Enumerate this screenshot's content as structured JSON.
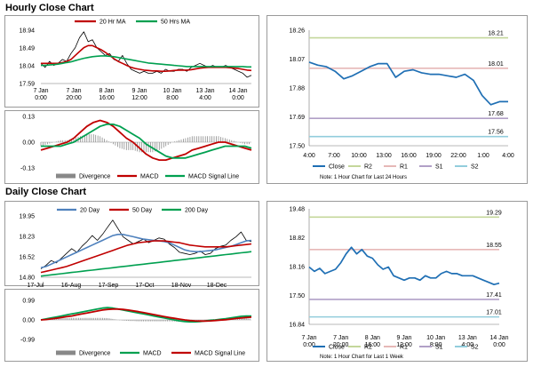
{
  "sections": {
    "hourly_title": "Hourly Close Chart",
    "daily_title": "Daily Close Chart"
  },
  "chart_data": [
    {
      "id": "hourly_price",
      "type": "line",
      "title": "Hourly Close Chart",
      "ylim": [
        17.59,
        18.94
      ],
      "yticks": [
        17.59,
        18.04,
        18.49,
        18.94
      ],
      "xticks": [
        "7 Jan\n0:00",
        "7 Jan\n20:00",
        "8 Jan\n16:00",
        "9 Jan\n12:00",
        "10 Jan\n8:00",
        "13 Jan\n4:00",
        "14 Jan\n0:00"
      ],
      "legend": [
        "20 Hr MA",
        "50 Hrs MA"
      ],
      "colors": {
        "close": "#000000",
        "ma20": "#c00000",
        "ma50": "#00a050"
      },
      "series": [
        {
          "name": "Close",
          "color": "#000000",
          "values": [
            18.1,
            18.0,
            18.15,
            18.05,
            18.1,
            18.2,
            18.15,
            18.35,
            18.5,
            18.75,
            18.9,
            18.65,
            18.7,
            18.5,
            18.4,
            18.3,
            18.35,
            18.2,
            18.15,
            18.3,
            18.1,
            17.95,
            17.9,
            17.85,
            17.9,
            17.85,
            17.85,
            17.9,
            17.85,
            17.95,
            17.9,
            17.9,
            17.95,
            17.95,
            17.9,
            18.0,
            18.05,
            18.1,
            18.05,
            18.0,
            18.05,
            18.0,
            18.0,
            18.05,
            18.0,
            17.95,
            17.9,
            17.85,
            17.75,
            17.8
          ]
        },
        {
          "name": "20 Hr MA",
          "color": "#c00000",
          "values": [
            18.1,
            18.1,
            18.1,
            18.1,
            18.1,
            18.12,
            18.15,
            18.2,
            18.3,
            18.4,
            18.5,
            18.55,
            18.55,
            18.5,
            18.45,
            18.38,
            18.3,
            18.22,
            18.15,
            18.1,
            18.05,
            18.0,
            17.97,
            17.95,
            17.93,
            17.92,
            17.91,
            17.91,
            17.9,
            17.9,
            17.91,
            17.92,
            17.93,
            17.93,
            17.93,
            17.94,
            17.96,
            17.98,
            17.99,
            18.0,
            18.0,
            18.0,
            18.0,
            18.0,
            17.99,
            17.98,
            17.97,
            17.95,
            17.93,
            17.92
          ]
        },
        {
          "name": "50 Hrs MA",
          "color": "#00a050",
          "values": [
            18.05,
            18.05,
            18.06,
            18.07,
            18.08,
            18.1,
            18.12,
            18.14,
            18.17,
            18.2,
            18.23,
            18.25,
            18.27,
            18.28,
            18.29,
            18.29,
            18.28,
            18.27,
            18.25,
            18.23,
            18.21,
            18.19,
            18.17,
            18.15,
            18.13,
            18.11,
            18.1,
            18.09,
            18.08,
            18.07,
            18.06,
            18.05,
            18.04,
            18.03,
            18.02,
            18.02,
            18.02,
            18.02,
            18.02,
            18.02,
            18.02,
            18.02,
            18.02,
            18.02,
            18.02,
            18.02,
            18.02,
            18.02,
            18.01,
            18.01
          ]
        }
      ]
    },
    {
      "id": "hourly_macd",
      "type": "line",
      "ylim": [
        -0.13,
        0.13
      ],
      "yticks": [
        0.13,
        0.0,
        -0.13
      ],
      "legend": [
        "Divergence",
        "MACD",
        "MACD Signal Line"
      ],
      "series": [
        {
          "name": "MACD",
          "color": "#c00000",
          "values": [
            -0.04,
            -0.03,
            -0.02,
            -0.01,
            0.0,
            0.02,
            0.05,
            0.08,
            0.1,
            0.11,
            0.1,
            0.08,
            0.05,
            0.02,
            0.0,
            -0.03,
            -0.06,
            -0.08,
            -0.09,
            -0.09,
            -0.08,
            -0.07,
            -0.06,
            -0.04,
            -0.03,
            -0.02,
            -0.01,
            0.0,
            0.0,
            -0.01,
            -0.02,
            -0.03,
            -0.04
          ]
        },
        {
          "name": "MACD Signal Line",
          "color": "#00a050",
          "values": [
            -0.02,
            -0.02,
            -0.02,
            -0.02,
            -0.01,
            0.0,
            0.02,
            0.04,
            0.06,
            0.08,
            0.09,
            0.09,
            0.08,
            0.06,
            0.04,
            0.02,
            -0.01,
            -0.03,
            -0.05,
            -0.07,
            -0.08,
            -0.08,
            -0.08,
            -0.07,
            -0.06,
            -0.05,
            -0.04,
            -0.03,
            -0.02,
            -0.02,
            -0.02,
            -0.02,
            -0.03
          ]
        }
      ]
    },
    {
      "id": "hourly_24h",
      "type": "line",
      "ylim": [
        17.5,
        18.26
      ],
      "yticks": [
        18.26,
        18.07,
        17.88,
        17.69,
        17.5
      ],
      "xticks": [
        "4:00",
        "7:00",
        "10:00",
        "13:00",
        "16:00",
        "19:00",
        "22:00",
        "1:00",
        "4:00"
      ],
      "legend": [
        "Close",
        "R2",
        "R1",
        "S1",
        "S2"
      ],
      "note": "Note: 1 Hour Chart for Last 24 Hours",
      "levels": {
        "R2": 18.21,
        "R1": 18.01,
        "S1": 17.68,
        "S2": 17.56
      },
      "level_colors": {
        "R2": "#c4d79b",
        "R1": "#e6b8b7",
        "S1": "#b1a0c7",
        "S2": "#92cddc"
      },
      "series": [
        {
          "name": "Close",
          "color": "#1f6fb4",
          "values": [
            18.05,
            18.03,
            18.02,
            17.99,
            17.94,
            17.96,
            17.99,
            18.02,
            18.04,
            18.04,
            17.95,
            17.99,
            18.0,
            17.98,
            17.97,
            17.97,
            17.96,
            17.95,
            17.97,
            17.93,
            17.83,
            17.77,
            17.79,
            17.79
          ]
        }
      ]
    },
    {
      "id": "daily_price",
      "type": "line",
      "title": "Daily Close Chart",
      "ylim": [
        14.8,
        19.95
      ],
      "yticks": [
        19.95,
        18.23,
        16.52,
        14.8
      ],
      "xticks": [
        "17-Jul",
        "16-Aug",
        "17-Sep",
        "17-Oct",
        "18-Nov",
        "18-Dec"
      ],
      "legend": [
        "20 Day",
        "50 Day",
        "200 Day"
      ],
      "series": [
        {
          "name": "Close",
          "color": "#000000",
          "values": [
            15.5,
            15.8,
            16.2,
            16.0,
            16.4,
            16.8,
            17.2,
            16.9,
            17.4,
            17.8,
            18.3,
            17.9,
            18.4,
            19.0,
            19.6,
            18.9,
            18.2,
            17.9,
            17.6,
            17.8,
            18.0,
            17.7,
            17.9,
            18.1,
            18.0,
            17.6,
            17.3,
            16.9,
            16.8,
            16.7,
            16.8,
            17.0,
            16.7,
            16.8,
            17.2,
            17.4,
            17.5,
            17.9,
            18.2,
            18.6,
            17.9,
            17.8
          ]
        },
        {
          "name": "20 Day",
          "color": "#4f81bd",
          "values": [
            15.6,
            15.7,
            15.9,
            16.1,
            16.3,
            16.5,
            16.7,
            16.9,
            17.1,
            17.3,
            17.5,
            17.7,
            17.9,
            18.1,
            18.3,
            18.4,
            18.4,
            18.3,
            18.2,
            18.1,
            18.0,
            17.95,
            17.9,
            17.85,
            17.8,
            17.7,
            17.5,
            17.3,
            17.1,
            17.0,
            16.95,
            16.95,
            17.0,
            17.05,
            17.1,
            17.2,
            17.3,
            17.4,
            17.55,
            17.7,
            17.85,
            17.9
          ]
        },
        {
          "name": "50 Day",
          "color": "#c00000",
          "values": [
            15.2,
            15.3,
            15.4,
            15.5,
            15.6,
            15.7,
            15.85,
            16.0,
            16.15,
            16.3,
            16.45,
            16.6,
            16.75,
            16.9,
            17.05,
            17.2,
            17.35,
            17.5,
            17.6,
            17.7,
            17.75,
            17.8,
            17.85,
            17.85,
            17.85,
            17.8,
            17.75,
            17.7,
            17.6,
            17.5,
            17.45,
            17.4,
            17.35,
            17.35,
            17.35,
            17.35,
            17.35,
            17.4,
            17.45,
            17.5,
            17.55,
            17.6
          ]
        },
        {
          "name": "200 Day",
          "color": "#00a050",
          "values": [
            14.9,
            14.95,
            15.0,
            15.05,
            15.1,
            15.15,
            15.2,
            15.25,
            15.3,
            15.35,
            15.4,
            15.45,
            15.5,
            15.55,
            15.6,
            15.65,
            15.7,
            15.75,
            15.8,
            15.85,
            15.9,
            15.95,
            16.0,
            16.05,
            16.1,
            16.15,
            16.2,
            16.25,
            16.3,
            16.35,
            16.4,
            16.45,
            16.5,
            16.55,
            16.6,
            16.65,
            16.7,
            16.75,
            16.8,
            16.85,
            16.9,
            16.95
          ]
        }
      ]
    },
    {
      "id": "daily_macd",
      "type": "line",
      "ylim": [
        -0.99,
        0.99
      ],
      "yticks": [
        0.99,
        0.0,
        -0.99
      ],
      "legend": [
        "Divergence",
        "MACD",
        "MACD Signal Line"
      ],
      "series": [
        {
          "name": "MACD",
          "color": "#00a050",
          "values": [
            0.0,
            0.05,
            0.1,
            0.15,
            0.2,
            0.25,
            0.3,
            0.35,
            0.4,
            0.45,
            0.5,
            0.55,
            0.6,
            0.62,
            0.6,
            0.55,
            0.5,
            0.45,
            0.4,
            0.35,
            0.3,
            0.25,
            0.2,
            0.15,
            0.1,
            0.05,
            0.0,
            -0.05,
            -0.08,
            -0.1,
            -0.1,
            -0.08,
            -0.05,
            -0.02,
            0.0,
            0.03,
            0.06,
            0.1,
            0.14,
            0.18,
            0.2,
            0.2
          ]
        },
        {
          "name": "MACD Signal Line",
          "color": "#c00000",
          "values": [
            0.0,
            0.02,
            0.05,
            0.08,
            0.12,
            0.16,
            0.2,
            0.25,
            0.3,
            0.35,
            0.4,
            0.45,
            0.5,
            0.53,
            0.55,
            0.55,
            0.53,
            0.5,
            0.46,
            0.42,
            0.37,
            0.32,
            0.27,
            0.22,
            0.17,
            0.12,
            0.08,
            0.04,
            0.0,
            -0.03,
            -0.05,
            -0.06,
            -0.06,
            -0.05,
            -0.03,
            -0.01,
            0.01,
            0.04,
            0.07,
            0.1,
            0.12,
            0.14
          ]
        }
      ]
    },
    {
      "id": "daily_week",
      "type": "line",
      "ylim": [
        16.84,
        19.48
      ],
      "yticks": [
        19.48,
        18.82,
        18.16,
        17.5,
        16.84
      ],
      "xticks": [
        "7 Jan\n0:00",
        "7 Jan\n20:00",
        "8 Jan\n16:00",
        "9 Jan\n12:00",
        "10 Jan\n8:00",
        "13 Jan\n4:00",
        "14 Jan\n0:00"
      ],
      "legend": [
        "Close",
        "R2",
        "R1",
        "S1",
        "S2"
      ],
      "note": "Note: 1 Hour Chart for Last 1 Week",
      "levels": {
        "R2": 19.29,
        "R1": 18.55,
        "S1": 17.41,
        "S2": 17.01
      },
      "level_colors": {
        "R2": "#c4d79b",
        "R1": "#e6b8b7",
        "S1": "#b1a0c7",
        "S2": "#92cddc"
      },
      "series": [
        {
          "name": "Close",
          "color": "#1f6fb4",
          "values": [
            18.15,
            18.05,
            18.12,
            18.0,
            18.05,
            18.1,
            18.25,
            18.45,
            18.6,
            18.45,
            18.55,
            18.4,
            18.35,
            18.2,
            18.1,
            18.15,
            17.95,
            17.9,
            17.85,
            17.9,
            17.9,
            17.85,
            17.95,
            17.9,
            17.9,
            18.0,
            18.05,
            18.0,
            18.0,
            17.95,
            17.95,
            17.95,
            17.9,
            17.85,
            17.8,
            17.75,
            17.78
          ]
        }
      ]
    }
  ]
}
